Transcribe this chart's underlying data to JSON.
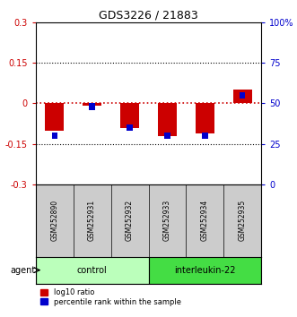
{
  "title": "GDS3226 / 21883",
  "samples": [
    "GSM252890",
    "GSM252931",
    "GSM252932",
    "GSM252933",
    "GSM252934",
    "GSM252935"
  ],
  "log10_ratio": [
    -0.1,
    -0.01,
    -0.09,
    -0.12,
    -0.11,
    0.05
  ],
  "percentile_rank": [
    30,
    48,
    35,
    30,
    30,
    55
  ],
  "ylim_left": [
    -0.3,
    0.3
  ],
  "ylim_right": [
    0,
    100
  ],
  "yticks_left": [
    -0.3,
    -0.15,
    0,
    0.15,
    0.3
  ],
  "yticks_right": [
    0,
    25,
    50,
    75,
    100
  ],
  "hlines": [
    -0.15,
    0.15
  ],
  "red_bar_width": 0.5,
  "blue_bar_width": 0.15,
  "red_color": "#cc0000",
  "blue_color": "#0000cc",
  "groups": [
    {
      "label": "control",
      "indices": [
        0,
        1,
        2
      ],
      "color": "#bbffbb"
    },
    {
      "label": "interleukin-22",
      "indices": [
        3,
        4,
        5
      ],
      "color": "#44dd44"
    }
  ],
  "agent_label": "agent",
  "legend_red": "log10 ratio",
  "legend_blue": "percentile rank within the sample",
  "background_color": "#ffffff",
  "sample_box_color": "#cccccc"
}
